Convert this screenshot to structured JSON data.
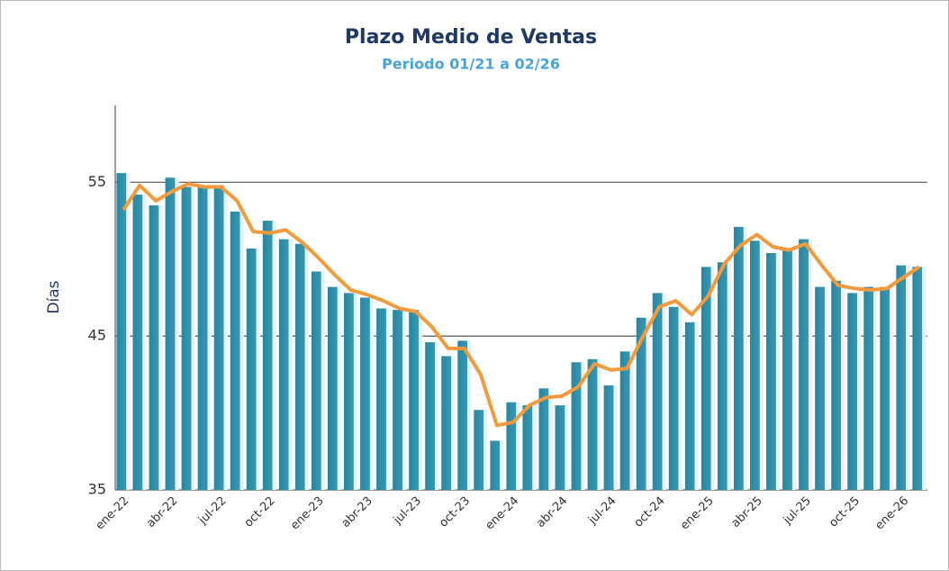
{
  "chart_data": {
    "type": "bar_line",
    "title": "Plazo Medio de Ventas",
    "subtitle": "Periodo 01/21 a 02/26",
    "y_label": "Días",
    "categories": [
      "ene-22",
      null,
      null,
      "abr-22",
      null,
      null,
      "jul-22",
      null,
      null,
      "oct-22",
      null,
      null,
      "ene-23",
      null,
      null,
      "abr-23",
      null,
      null,
      "jul-23",
      null,
      null,
      "oct-23",
      null,
      null,
      "ene-24",
      null,
      null,
      "abr-24",
      null,
      null,
      "jul-24",
      null,
      null,
      "oct-24",
      null,
      null,
      "ene-25",
      null,
      null,
      "abr-25",
      null,
      null,
      "jul-25",
      null,
      null,
      "oct-25",
      null,
      null,
      "ene-26",
      null
    ],
    "series": [
      {
        "type": "bar",
        "color": "#2e8ea6",
        "values": [
          55.6,
          54.2,
          53.5,
          55.3,
          54.7,
          54.8,
          54.8,
          53.1,
          50.7,
          52.5,
          51.3,
          51.0,
          49.2,
          48.2,
          47.8,
          47.5,
          46.8,
          46.7,
          46.7,
          44.6,
          43.7,
          44.7,
          40.2,
          38.2,
          40.7,
          40.5,
          41.6,
          40.5,
          43.3,
          43.5,
          41.8,
          44.0,
          46.2,
          47.8,
          46.9,
          45.9,
          49.5,
          49.8,
          52.1,
          51.2,
          50.4,
          50.7,
          51.3,
          48.2,
          48.6,
          47.8,
          48.2,
          48.2,
          49.6,
          49.5
        ]
      },
      {
        "type": "line",
        "color": "#f39a3c",
        "values": [
          53.2,
          54.8,
          53.8,
          54.4,
          54.9,
          54.7,
          54.7,
          53.8,
          51.8,
          51.7,
          51.9,
          51.1,
          50.1,
          49.0,
          48.0,
          47.7,
          47.3,
          46.8,
          46.6,
          45.6,
          44.2,
          44.2,
          42.5,
          39.2,
          39.4,
          40.5,
          41.0,
          41.1,
          41.7,
          43.2,
          42.8,
          42.9,
          45.0,
          46.9,
          47.3,
          46.4,
          47.6,
          49.7,
          50.9,
          51.6,
          50.8,
          50.6,
          51.0,
          49.6,
          48.3,
          48.1,
          48.0,
          48.1,
          48.8,
          49.5
        ]
      }
    ],
    "ylim": [
      35,
      60
    ],
    "yticks": [
      35,
      45,
      55
    ],
    "grid": true
  }
}
